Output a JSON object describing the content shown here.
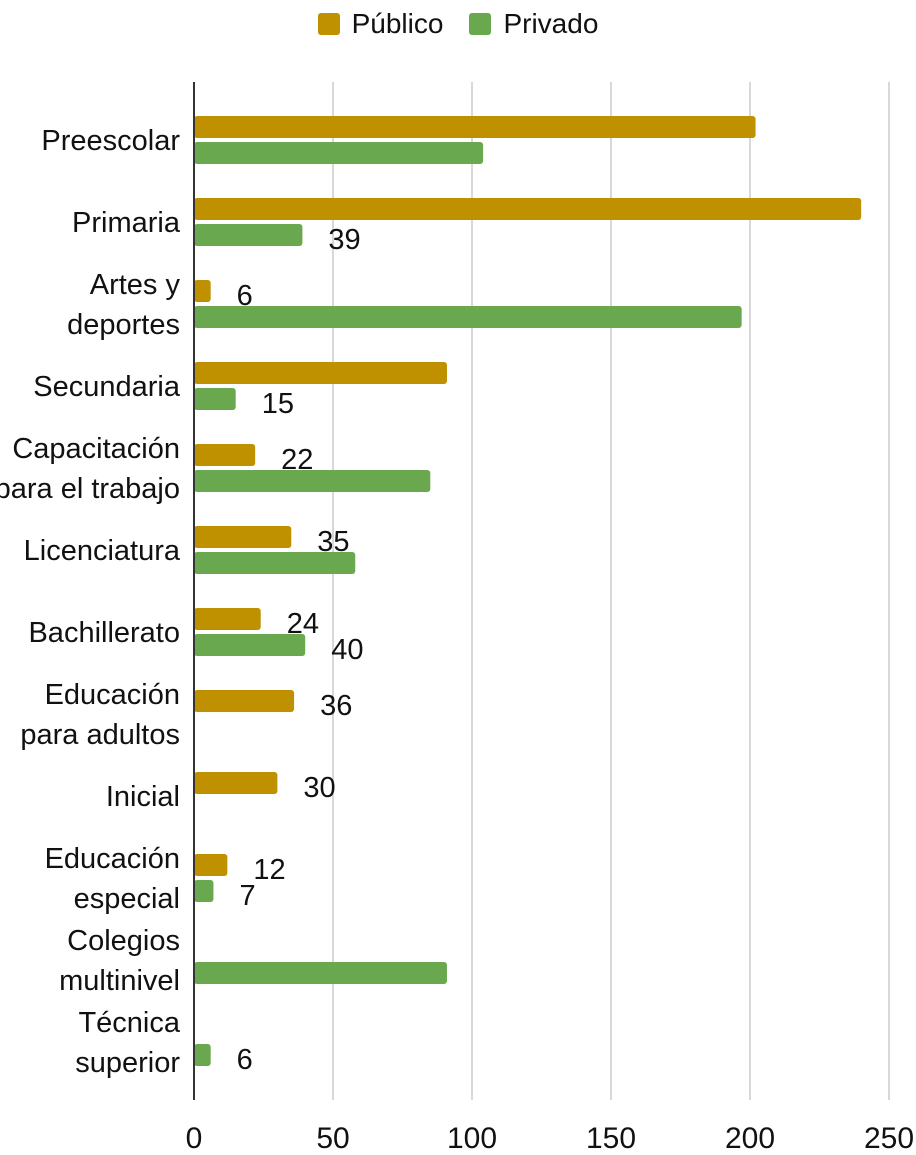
{
  "chart_data": {
    "type": "bar",
    "orientation": "horizontal",
    "title": "",
    "xlabel": "",
    "ylabel": "",
    "xlim": [
      0,
      250
    ],
    "xticks": [
      0,
      50,
      100,
      150,
      200,
      250
    ],
    "grid": "vertical",
    "legend_position": "top-center",
    "categories": [
      [
        "Preescolar"
      ],
      [
        "Primaria"
      ],
      [
        "Artes y",
        "deportes"
      ],
      [
        "Secundaria"
      ],
      [
        "Capacitación",
        "para el trabajo"
      ],
      [
        "Licenciatura"
      ],
      [
        "Bachillerato"
      ],
      [
        "Educación",
        "para adultos"
      ],
      [
        "Inicial"
      ],
      [
        "Educación",
        "especial"
      ],
      [
        "Colegios",
        "multinivel"
      ],
      [
        "Técnica",
        "superior"
      ]
    ],
    "series": [
      {
        "name": "Público",
        "color": "#BF9000",
        "values": [
          202,
          240,
          6,
          91,
          22,
          35,
          24,
          36,
          30,
          12,
          0,
          0
        ],
        "labels": [
          "",
          "",
          "6",
          "",
          "22",
          "35",
          "24",
          "36",
          "30",
          "12",
          "",
          ""
        ]
      },
      {
        "name": "Privado",
        "color": "#6AA84F",
        "values": [
          104,
          39,
          197,
          15,
          85,
          58,
          40,
          0,
          0,
          7,
          91,
          6
        ],
        "labels": [
          "",
          "39",
          "",
          "15",
          "",
          "",
          "40",
          "",
          "",
          "7",
          "",
          "6"
        ]
      }
    ]
  }
}
